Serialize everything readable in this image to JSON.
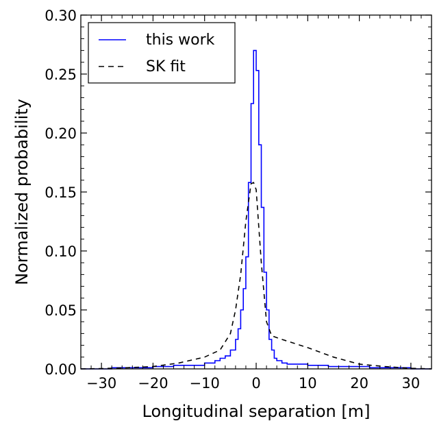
{
  "chart_data": {
    "type": "line",
    "title": "",
    "xlabel": "Longitudinal separation  [m]",
    "ylabel": "Normalized probability",
    "xlim": [
      -34,
      34
    ],
    "ylim": [
      0,
      0.3
    ],
    "xticks": [
      -30,
      -20,
      -10,
      0,
      10,
      20,
      30
    ],
    "xtick_labels": [
      "−30",
      "−20",
      "−10",
      "0",
      "10",
      "20",
      "30"
    ],
    "yticks": [
      0.0,
      0.05,
      0.1,
      0.15,
      0.2,
      0.25,
      0.3
    ],
    "ytick_labels": [
      "0.00",
      "0.05",
      "0.10",
      "0.15",
      "0.20",
      "0.25",
      "0.30"
    ],
    "grid": false,
    "legend_position": "top-left",
    "series": [
      {
        "name": "this work",
        "style": "steps",
        "color": "#0000ff",
        "dash": "solid",
        "x": [
          -34,
          -28,
          -24,
          -20,
          -16,
          -12,
          -10,
          -8,
          -7,
          -6,
          -5,
          -4,
          -3.5,
          -3,
          -2.5,
          -2,
          -1.5,
          -1,
          -0.5,
          0,
          0.5,
          1,
          1.5,
          2,
          2.5,
          3,
          3.5,
          4,
          5,
          6,
          8,
          10,
          14,
          18,
          22,
          26,
          30,
          34
        ],
        "y": [
          0.0,
          0.001,
          0.001,
          0.002,
          0.003,
          0.003,
          0.005,
          0.007,
          0.009,
          0.011,
          0.016,
          0.025,
          0.034,
          0.05,
          0.068,
          0.095,
          0.158,
          0.225,
          0.27,
          0.253,
          0.19,
          0.137,
          0.082,
          0.05,
          0.025,
          0.016,
          0.009,
          0.007,
          0.005,
          0.004,
          0.004,
          0.003,
          0.002,
          0.002,
          0.001,
          0.001,
          0.0,
          0.0
        ]
      },
      {
        "name": "SK fit",
        "style": "line",
        "color": "#000000",
        "dash": "dashed",
        "x": [
          -34,
          -30,
          -25,
          -20,
          -15,
          -10,
          -7,
          -5,
          -4,
          -3,
          -2,
          -1,
          -0.5,
          0,
          1,
          2,
          3,
          5,
          10,
          15,
          20,
          25,
          30,
          34
        ],
        "y": [
          0.0,
          0.0003,
          0.001,
          0.002,
          0.005,
          0.01,
          0.016,
          0.03,
          0.05,
          0.08,
          0.125,
          0.157,
          0.158,
          0.152,
          0.09,
          0.04,
          0.028,
          0.025,
          0.018,
          0.01,
          0.004,
          0.002,
          0.0005,
          0.0
        ]
      }
    ]
  }
}
